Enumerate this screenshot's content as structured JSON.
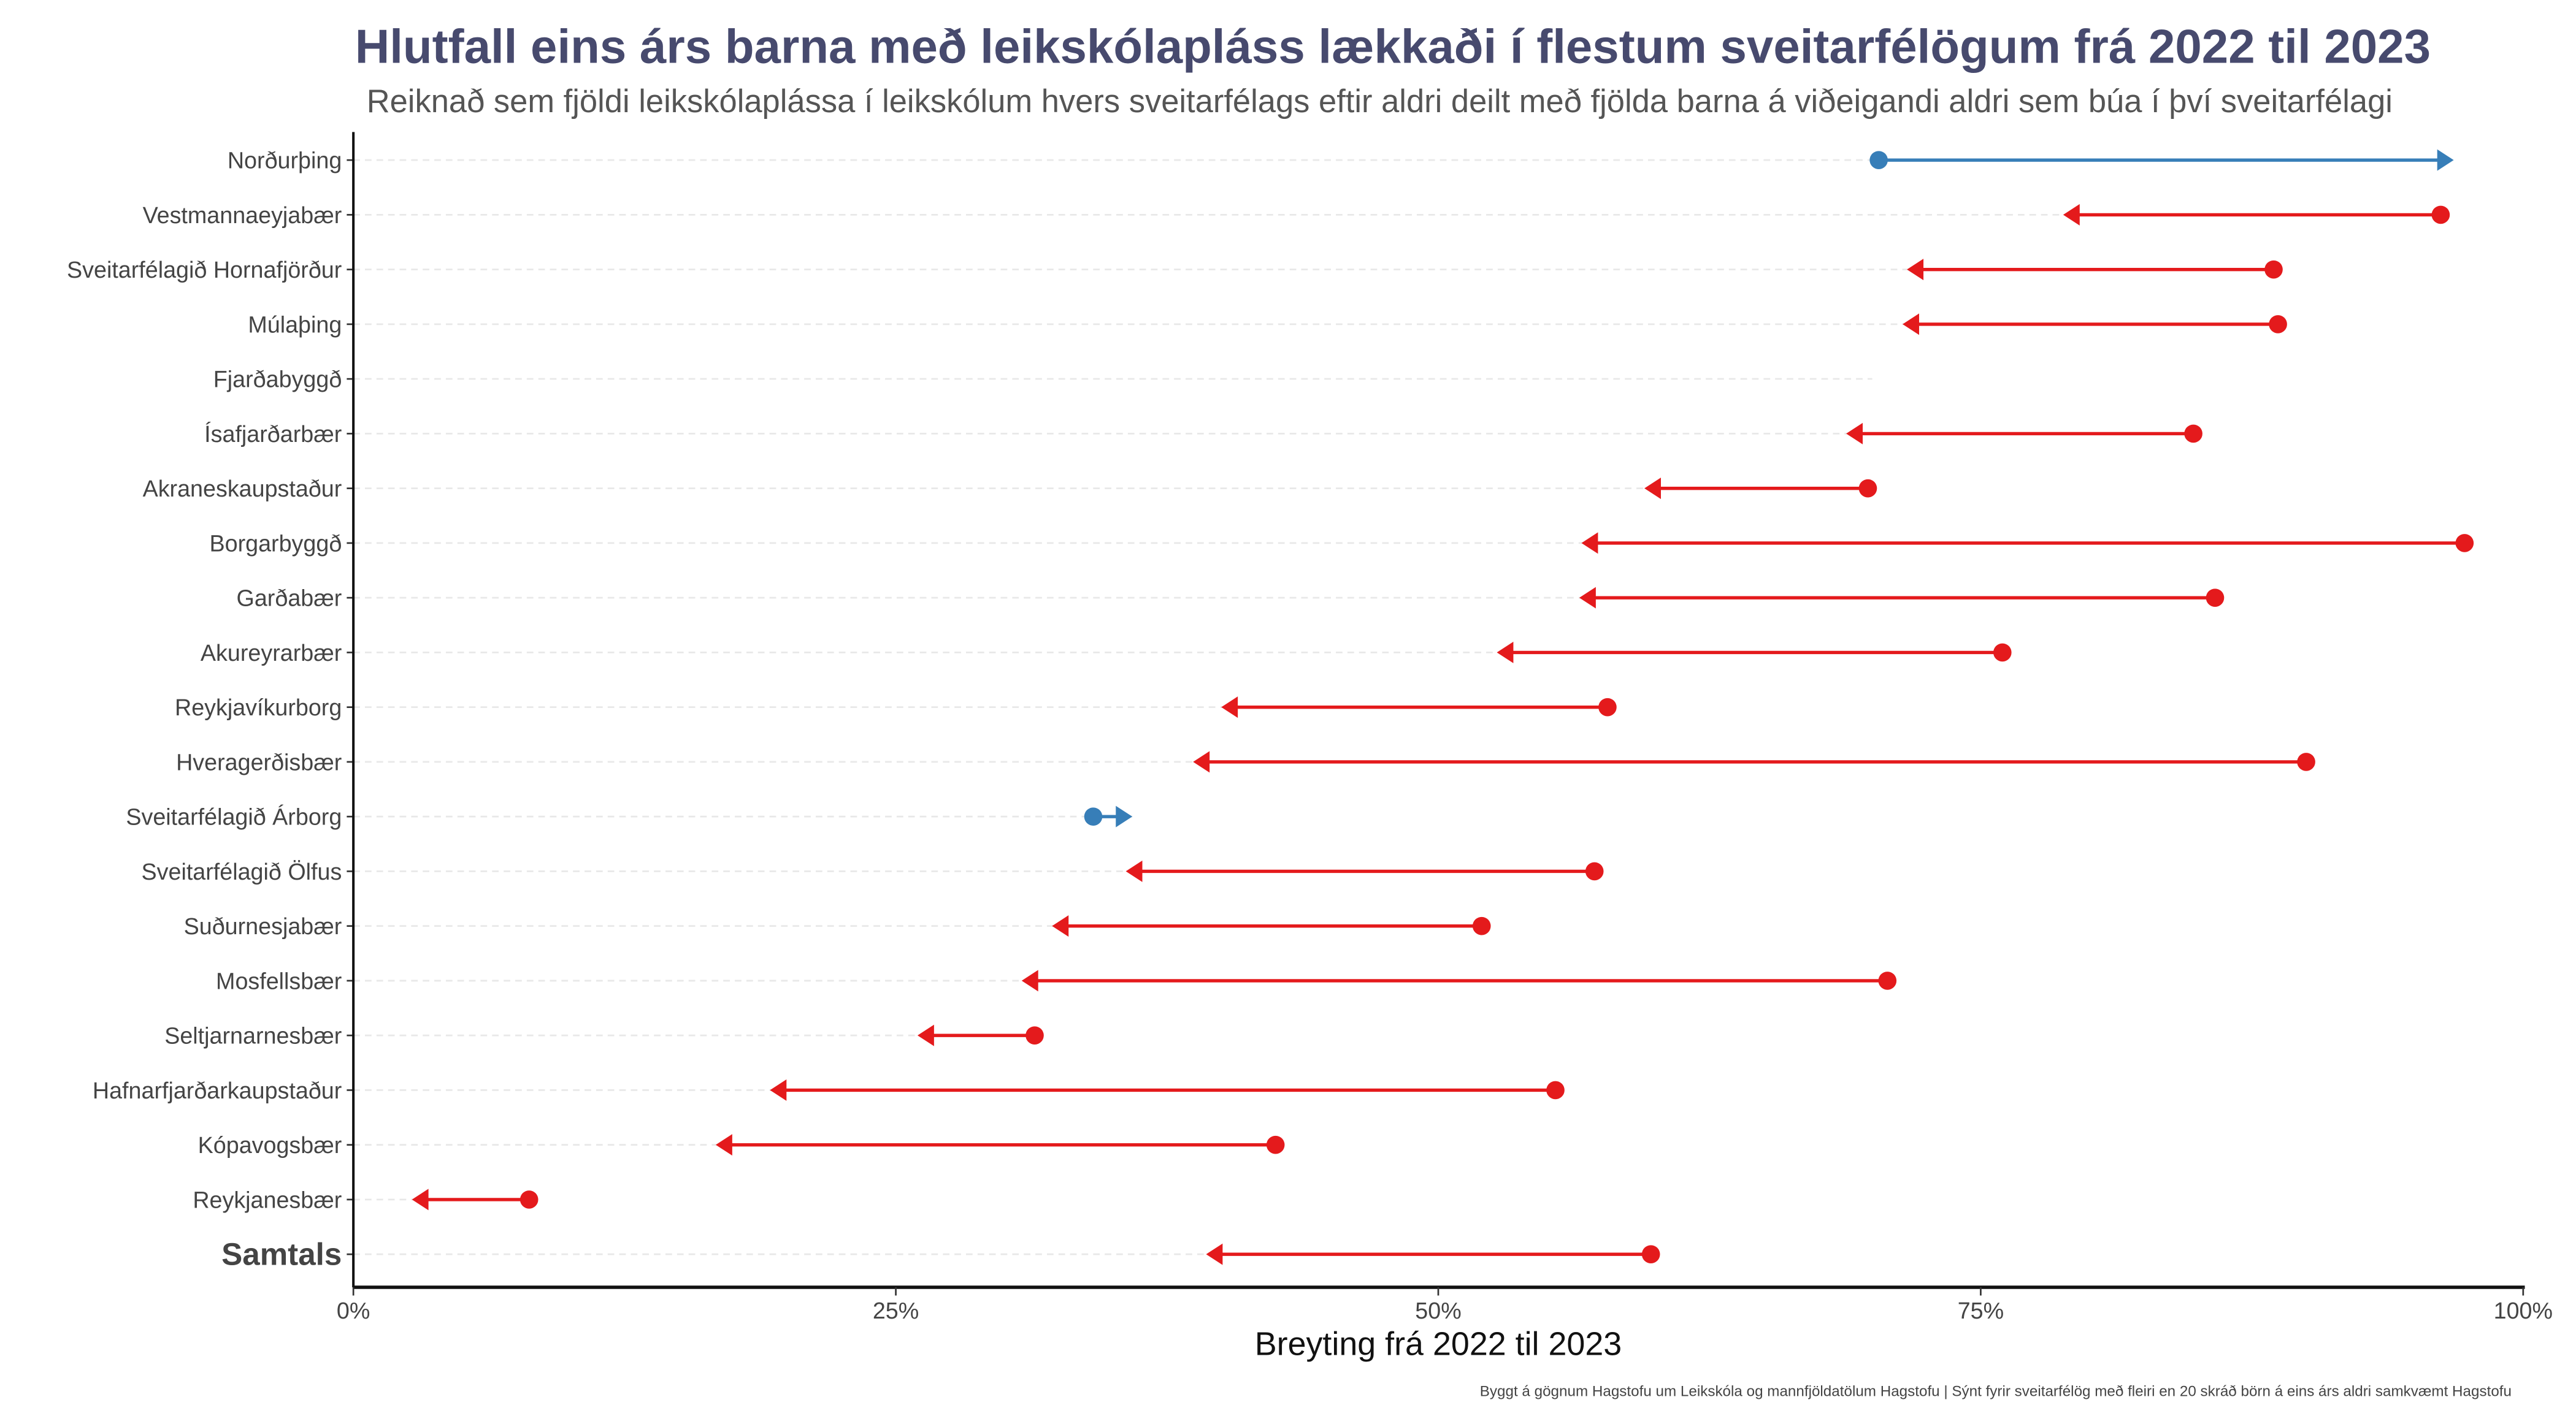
{
  "chart_data": {
    "type": "dumbbell-arrow",
    "title": "Hlutfall eins árs barna með leikskólapláss lækkaði í flestum sveitarfélögum frá 2022 til 2023",
    "subtitle": "Reiknað sem fjöldi leikskólaplássa í leikskólum hvers sveitarfélags eftir aldri deilt með fjölda barna á viðeigandi aldri sem búa í því sveitarfélagi",
    "xlabel": "Breyting frá 2022 til 2023",
    "caption": "Byggt á gögnum Hagstofu um Leikskóla og mannfjöldatölum Hagstofu | Sýnt fyrir sveitarfélög með fleiri en 20 skráð börn á eins árs aldri samkvæmt Hagstofu",
    "xlim": [
      0,
      100
    ],
    "x_ticks": [
      "0%",
      "25%",
      "50%",
      "75%",
      "100%"
    ],
    "x_tick_values": [
      0,
      25,
      50,
      75,
      100
    ],
    "grid": "horizontal dashed",
    "colors": {
      "decrease": "#e41a1c",
      "increase": "#377eb8",
      "title": "#474a6e"
    },
    "rows": [
      {
        "name": "Norðurþing",
        "y2022": 70.3,
        "y2023": 96.8
      },
      {
        "name": "Vestmannaeyjabær",
        "y2022": 96.2,
        "y2023": 78.8
      },
      {
        "name": "Sveitarfélagið Hornafjörður",
        "y2022": 88.5,
        "y2023": 71.6
      },
      {
        "name": "Múlaþing",
        "y2022": 88.7,
        "y2023": 71.4
      },
      {
        "name": "Fjarðabyggð",
        "y2022": null,
        "y2023": null
      },
      {
        "name": "Ísafjarðarbær",
        "y2022": 84.8,
        "y2023": 68.8
      },
      {
        "name": "Akraneskaupstaður",
        "y2022": 69.8,
        "y2023": 59.5
      },
      {
        "name": "Borgarbyggð",
        "y2022": 97.3,
        "y2023": 56.6
      },
      {
        "name": "Garðabær",
        "y2022": 85.8,
        "y2023": 56.5
      },
      {
        "name": "Akureyrarbær",
        "y2022": 76.0,
        "y2023": 52.7
      },
      {
        "name": "Reykjavíkurborg",
        "y2022": 57.8,
        "y2023": 40.0
      },
      {
        "name": "Hveragerðisbær",
        "y2022": 90.0,
        "y2023": 38.7
      },
      {
        "name": "Sveitarfélagið Árborg",
        "y2022": 34.1,
        "y2023": 35.9
      },
      {
        "name": "Sveitarfélagið Ölfus",
        "y2022": 57.2,
        "y2023": 35.6
      },
      {
        "name": "Suðurnesjabær",
        "y2022": 52.0,
        "y2023": 32.2
      },
      {
        "name": "Mosfellsbær",
        "y2022": 70.7,
        "y2023": 30.8
      },
      {
        "name": "Seltjarnarnesbær",
        "y2022": 31.4,
        "y2023": 26.0
      },
      {
        "name": "Hafnarfjarðarkaupstaður",
        "y2022": 55.4,
        "y2023": 19.2
      },
      {
        "name": "Kópavogsbær",
        "y2022": 42.5,
        "y2023": 16.7
      },
      {
        "name": "Reykjanesbær",
        "y2022": 8.1,
        "y2023": 2.7
      },
      {
        "name": "Samtals",
        "y2022": 59.8,
        "y2023": 39.3,
        "total": true
      }
    ]
  }
}
